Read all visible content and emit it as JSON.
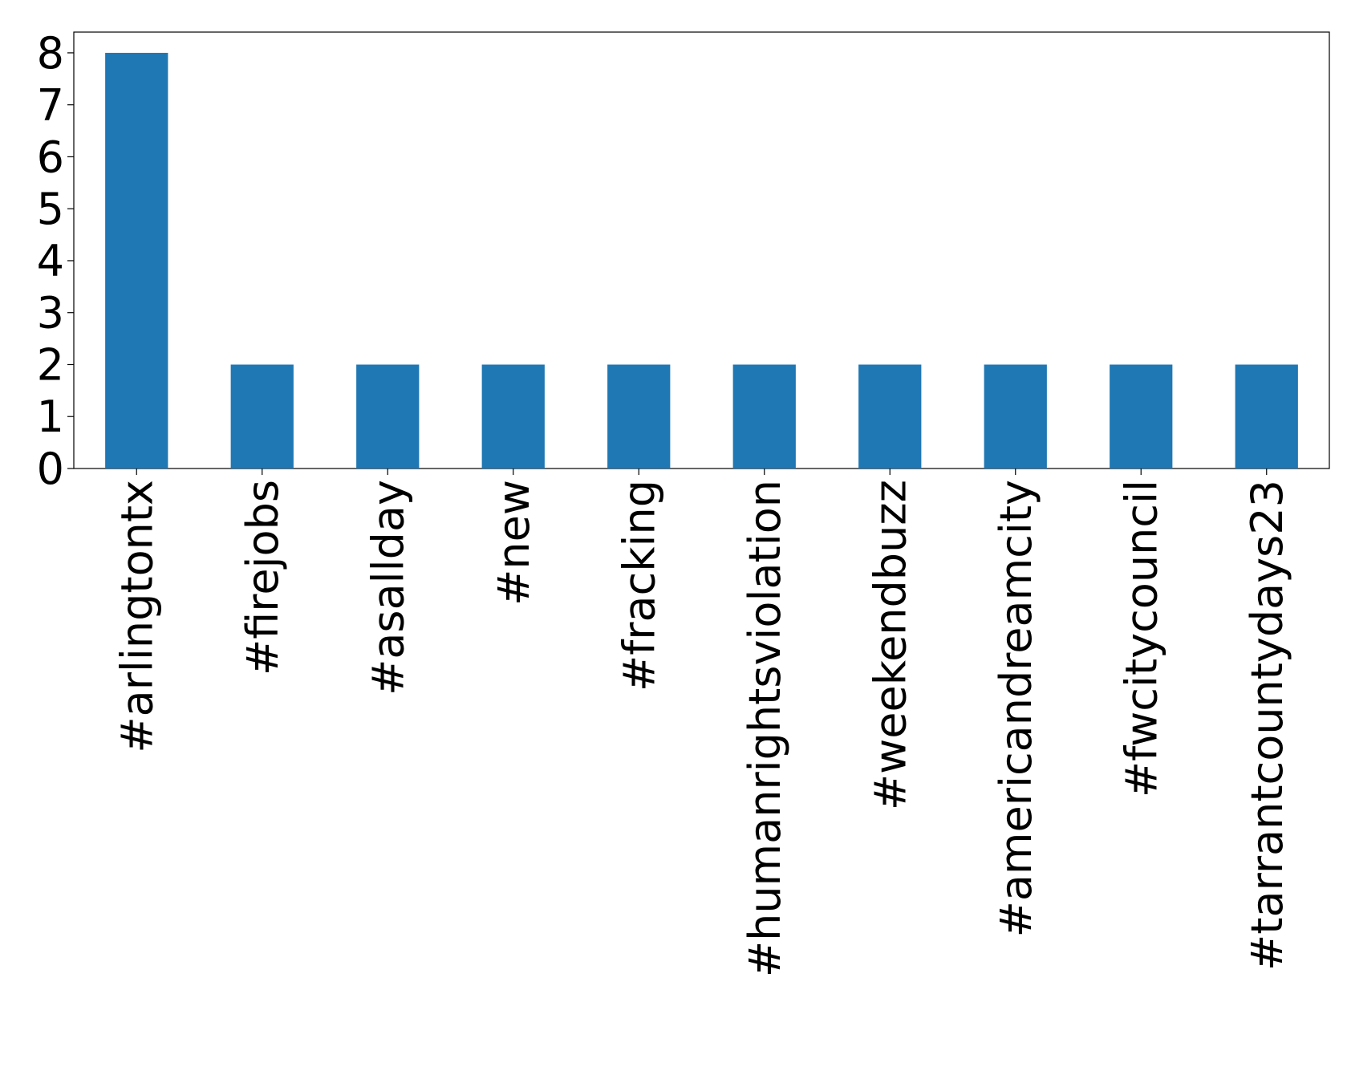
{
  "chart_data": {
    "type": "bar",
    "categories": [
      "#arlingtontx",
      "#firejobs",
      "#asallday",
      "#new",
      "#fracking",
      "#humanrightsviolation",
      "#weekendbuzz",
      "#americandreamcity",
      "#fwcitycouncil",
      "#tarrantcountydays23"
    ],
    "values": [
      8,
      2,
      2,
      2,
      2,
      2,
      2,
      2,
      2,
      2
    ],
    "color": "#1f77b4",
    "ylim": [
      0,
      8.4
    ],
    "yticks": [
      0,
      1,
      2,
      3,
      4,
      5,
      6,
      7,
      8
    ],
    "grid": false
  }
}
